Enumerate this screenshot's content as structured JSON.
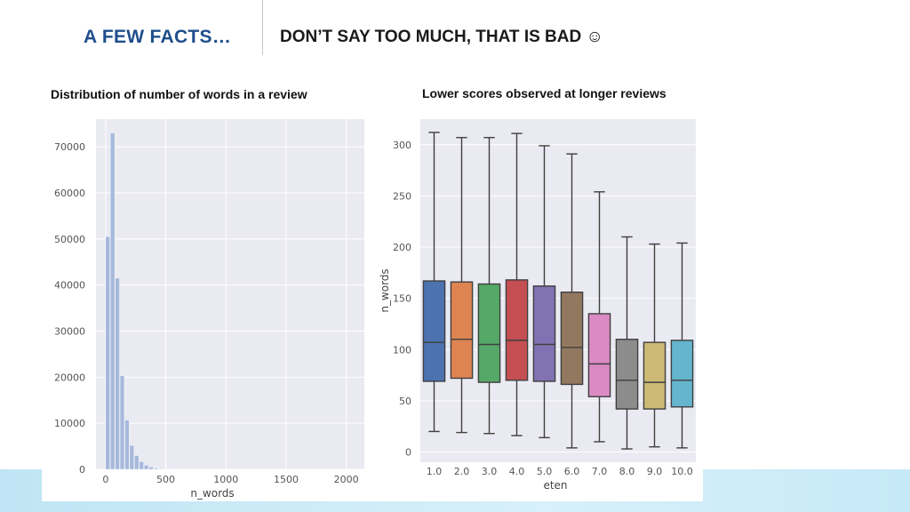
{
  "slide": {
    "title": "A FEW FACTS…",
    "subtitle": "DON’T SAY TOO MUCH, THAT IS BAD ☺"
  },
  "colors": {
    "title": "#1f4e8c",
    "plot_bg": "#eaeaf2",
    "hist_bar": "#a7b9db",
    "band": "#c6e9f7"
  },
  "chart_data": [
    {
      "type": "bar",
      "title": "Distribution of number of words in a review",
      "xlabel": "n_words",
      "ylabel": "",
      "xlim": [
        -80,
        2150
      ],
      "ylim": [
        0,
        76000
      ],
      "grid": true,
      "x_ticks": [
        "0",
        "500",
        "1000",
        "1500",
        "2000"
      ],
      "y_ticks": [
        "0",
        "10000",
        "20000",
        "30000",
        "40000",
        "50000",
        "60000",
        "70000"
      ],
      "bin_width": 40,
      "bin_starts": [
        0,
        40,
        80,
        120,
        160,
        200,
        240,
        280,
        320,
        360,
        400,
        440,
        480,
        520,
        560
      ],
      "values": [
        50500,
        73000,
        41500,
        20300,
        10700,
        5200,
        3000,
        1700,
        900,
        500,
        260,
        150,
        90,
        50,
        30
      ]
    },
    {
      "type": "box",
      "title": "Lower scores observed at longer reviews",
      "xlabel": "eten",
      "ylabel": "n_words",
      "ylim": [
        -10,
        325
      ],
      "grid": true,
      "y_ticks": [
        "0",
        "50",
        "100",
        "150",
        "200",
        "250",
        "300"
      ],
      "categories": [
        "1.0",
        "2.0",
        "3.0",
        "4.0",
        "5.0",
        "6.0",
        "7.0",
        "8.0",
        "9.0",
        "10.0"
      ],
      "colors": [
        "#4c72b0",
        "#dd8452",
        "#55a868",
        "#c44e52",
        "#8172b3",
        "#937860",
        "#da8bc3",
        "#8c8c8c",
        "#ccb974",
        "#64b5cd"
      ],
      "boxes": [
        {
          "whislo": 20,
          "q1": 69,
          "med": 107,
          "q3": 167,
          "whishi": 312
        },
        {
          "whislo": 19,
          "q1": 72,
          "med": 110,
          "q3": 166,
          "whishi": 307
        },
        {
          "whislo": 18,
          "q1": 68,
          "med": 105,
          "q3": 164,
          "whishi": 307
        },
        {
          "whislo": 16,
          "q1": 70,
          "med": 109,
          "q3": 168,
          "whishi": 311
        },
        {
          "whislo": 14,
          "q1": 69,
          "med": 105,
          "q3": 162,
          "whishi": 299
        },
        {
          "whislo": 4,
          "q1": 66,
          "med": 102,
          "q3": 156,
          "whishi": 291
        },
        {
          "whislo": 10,
          "q1": 54,
          "med": 86,
          "q3": 135,
          "whishi": 254
        },
        {
          "whislo": 3,
          "q1": 42,
          "med": 70,
          "q3": 110,
          "whishi": 210
        },
        {
          "whislo": 5,
          "q1": 42,
          "med": 68,
          "q3": 107,
          "whishi": 203
        },
        {
          "whislo": 4,
          "q1": 44,
          "med": 70,
          "q3": 109,
          "whishi": 204
        }
      ]
    }
  ]
}
